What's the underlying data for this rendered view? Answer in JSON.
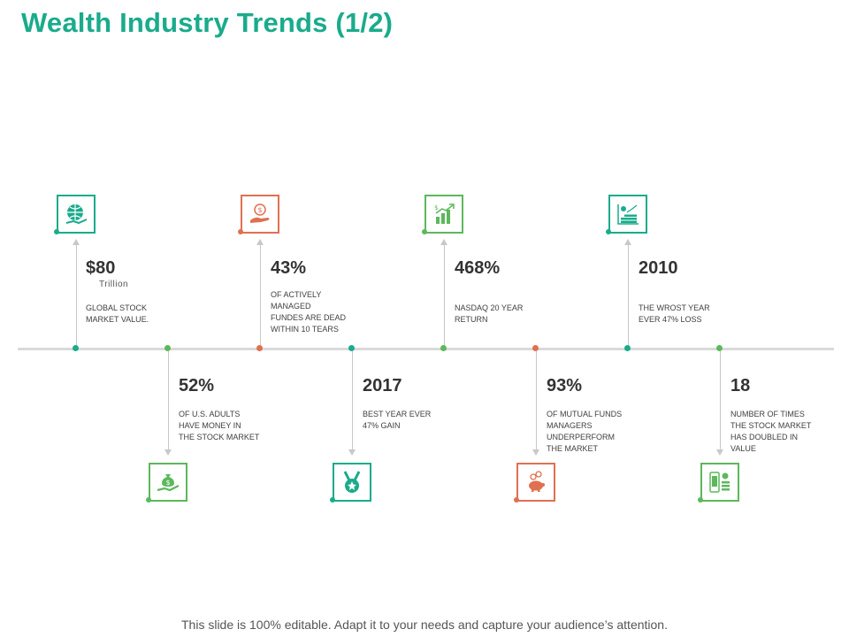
{
  "title": "Wealth Industry Trends (1/2)",
  "colors": {
    "teal": "#1aab8c",
    "green": "#5cb85c",
    "orange": "#e07050",
    "line": "#d9d9d9"
  },
  "items": [
    {
      "value": "$80",
      "unit": "Trillion",
      "desc": "GLOBAL STOCK\nMARKET VALUE.",
      "icon": "globe-hand-icon",
      "color": "#1aab8c"
    },
    {
      "value": "52%",
      "desc": "OF U.S. ADULTS\nHAVE MONEY IN\nTHE STOCK MARKET",
      "icon": "money-bag-hand-icon",
      "color": "#5cb85c"
    },
    {
      "value": "43%",
      "desc": "OF ACTIVELY\nMANAGED\nFUNDES  ARE DEAD\nWITHIN  10 TEARS",
      "icon": "coin-hand-icon",
      "color": "#e07050"
    },
    {
      "value": "2017",
      "desc": "BEST YEAR EVER\n47% GAIN",
      "icon": "medal-icon",
      "color": "#1aab8c"
    },
    {
      "value": "468%",
      "desc": "NASDAQ 20 YEAR\nRETURN",
      "icon": "growth-chart-icon",
      "color": "#5cb85c"
    },
    {
      "value": "93%",
      "desc": "OF MUTUAL FUNDS\nMANAGERS\nUNDERPERFORM\nTHE MARKET",
      "icon": "piggy-bank-icon",
      "color": "#e07050"
    },
    {
      "value": "2010",
      "desc": "THE WROST YEAR\nEVER 47% LOSS",
      "icon": "stock-chart-icon",
      "color": "#1aab8c"
    },
    {
      "value": "18",
      "desc": "NUMBER  OF TIMES\nTHE STOCK MARKET\nHAS DOUBLED  IN\nVALUE",
      "icon": "mobile-finance-icon",
      "color": "#5cb85c"
    }
  ],
  "footer": "This slide is 100% editable. Adapt it to your needs and capture your audience’s attention."
}
